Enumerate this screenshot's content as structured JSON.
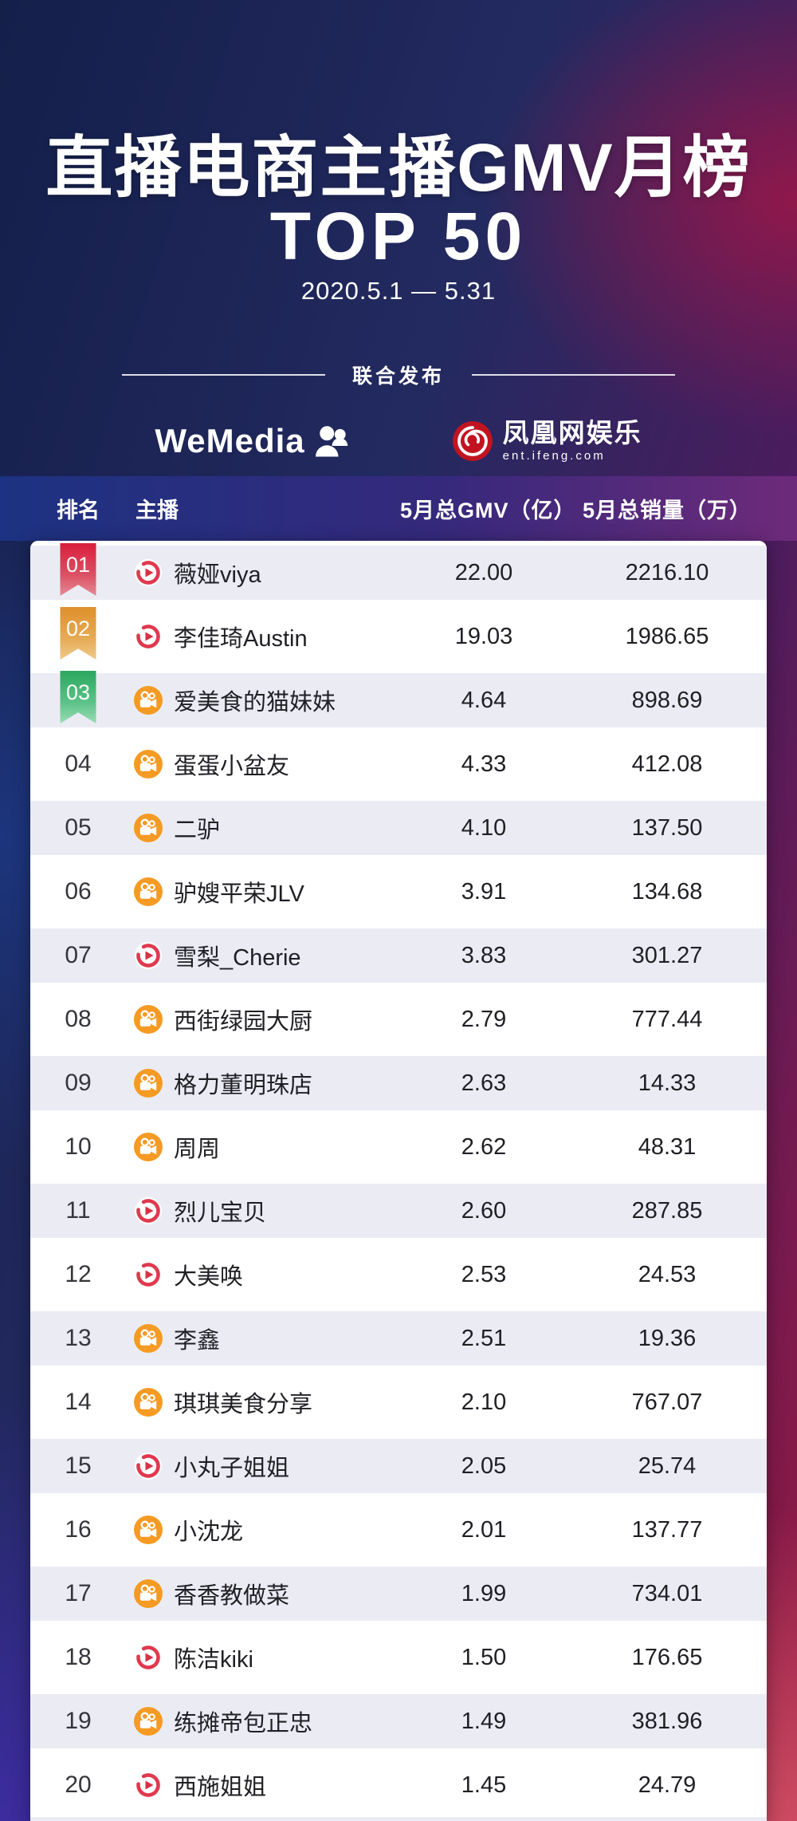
{
  "page": {
    "title": "直播电商主播GMV月榜",
    "subtitle": "TOP 50",
    "date_range": "2020.5.1 — 5.31",
    "publisher_label": "联合发布",
    "publishers": [
      {
        "name": "WeMedia",
        "icon": "wemedia-people-icon"
      },
      {
        "name": "凤凰网娱乐",
        "subtext": "ent.ifeng.com",
        "icon": "phoenix-icon"
      }
    ]
  },
  "table": {
    "columns": [
      "排名",
      "主播",
      "5月总GMV（亿）",
      "5月总销量（万）"
    ],
    "rows": [
      {
        "rank": "01",
        "name": "薇娅viya",
        "platform": "taobao-live",
        "gmv": "22.00",
        "sales": "2216.10"
      },
      {
        "rank": "02",
        "name": "李佳琦Austin",
        "platform": "taobao-live",
        "gmv": "19.03",
        "sales": "1986.65"
      },
      {
        "rank": "03",
        "name": "爱美食的猫妹妹",
        "platform": "kuaishou",
        "gmv": "4.64",
        "sales": "898.69"
      },
      {
        "rank": "04",
        "name": "蛋蛋小盆友",
        "platform": "kuaishou",
        "gmv": "4.33",
        "sales": "412.08"
      },
      {
        "rank": "05",
        "name": "二驴",
        "platform": "kuaishou",
        "gmv": "4.10",
        "sales": "137.50"
      },
      {
        "rank": "06",
        "name": "驴嫂平荣JLV",
        "platform": "kuaishou",
        "gmv": "3.91",
        "sales": "134.68"
      },
      {
        "rank": "07",
        "name": "雪梨_Cherie",
        "platform": "taobao-live",
        "gmv": "3.83",
        "sales": "301.27"
      },
      {
        "rank": "08",
        "name": "西街绿园大厨",
        "platform": "kuaishou",
        "gmv": "2.79",
        "sales": "777.44"
      },
      {
        "rank": "09",
        "name": "格力董明珠店",
        "platform": "kuaishou",
        "gmv": "2.63",
        "sales": "14.33"
      },
      {
        "rank": "10",
        "name": "周周",
        "platform": "kuaishou",
        "gmv": "2.62",
        "sales": "48.31"
      },
      {
        "rank": "11",
        "name": "烈儿宝贝",
        "platform": "taobao-live",
        "gmv": "2.60",
        "sales": "287.85"
      },
      {
        "rank": "12",
        "name": "大美唤",
        "platform": "taobao-live",
        "gmv": "2.53",
        "sales": "24.53"
      },
      {
        "rank": "13",
        "name": "李鑫",
        "platform": "kuaishou",
        "gmv": "2.51",
        "sales": "19.36"
      },
      {
        "rank": "14",
        "name": "琪琪美食分享",
        "platform": "kuaishou",
        "gmv": "2.10",
        "sales": "767.07"
      },
      {
        "rank": "15",
        "name": "小丸子姐姐",
        "platform": "taobao-live",
        "gmv": "2.05",
        "sales": "25.74"
      },
      {
        "rank": "16",
        "name": "小沈龙",
        "platform": "kuaishou",
        "gmv": "2.01",
        "sales": "137.77"
      },
      {
        "rank": "17",
        "name": "香香教做菜",
        "platform": "kuaishou",
        "gmv": "1.99",
        "sales": "734.01"
      },
      {
        "rank": "18",
        "name": "陈洁kiki",
        "platform": "taobao-live",
        "gmv": "1.50",
        "sales": "176.65"
      },
      {
        "rank": "19",
        "name": "练摊帝包正忠",
        "platform": "kuaishou",
        "gmv": "1.49",
        "sales": "381.96"
      },
      {
        "rank": "20",
        "name": "西施姐姐",
        "platform": "taobao-live",
        "gmv": "1.45",
        "sales": "24.79"
      }
    ]
  },
  "colors": {
    "rank1_badge": "#d91e3d",
    "rank2_badge": "#df8f2b",
    "rank3_badge": "#2aa85f",
    "taobao_live_red": "#e0394e",
    "kuaishou_orange": "#f59a23",
    "phoenix_red": "#c11420",
    "header_band_left": "#1d3282",
    "header_band_right": "#6e2a7a",
    "stripe_row": "#ebecf3",
    "background_navy": "#141f4a",
    "background_crimson": "#93173f"
  }
}
